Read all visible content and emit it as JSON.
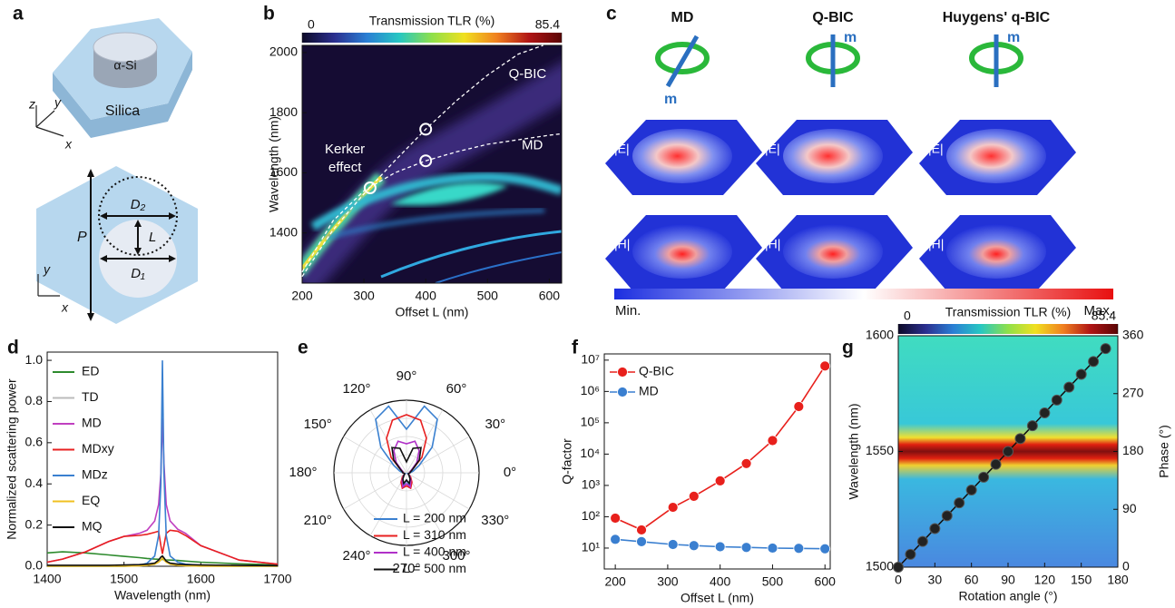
{
  "panel_labels": [
    "a",
    "b",
    "c",
    "d",
    "e",
    "f",
    "g"
  ],
  "panel_a": {
    "pillar": "α-Si",
    "substrate": "Silica",
    "axes_top": [
      "z",
      "y",
      "x"
    ],
    "d2": "D₂",
    "l": "L",
    "d1": "D₁",
    "p": "P",
    "axes_bottom": [
      "y",
      "x"
    ]
  },
  "panel_c": {
    "columns": [
      {
        "title": "MD",
        "moment": "m",
        "e_field": "|E|",
        "h_field": "|H|"
      },
      {
        "title": "Q-BIC",
        "moment": "m",
        "e_field": "|E|",
        "h_field": "|H|"
      },
      {
        "title": "Huygens' q-BIC",
        "moment": "m",
        "e_field": "|E|",
        "h_field": "|H|"
      }
    ],
    "colorbar": {
      "min_label": "Min.",
      "max_label": "Max."
    }
  },
  "chart_data": [
    {
      "type": "heatmap",
      "colorbar_title": "Transmission TLR (%)",
      "colorbar_ticks": [
        0,
        85.4
      ],
      "colormap": [
        "#0d0a28",
        "#2b2f8f",
        "#2a7fd4",
        "#27c7c2",
        "#8fe04a",
        "#f0e020",
        "#f08020",
        "#b01515",
        "#5a0505"
      ],
      "xlabel": "Offset L (nm)",
      "ylabel": "Wavelength (nm)",
      "xlim": [
        200,
        620
      ],
      "xticks": [
        200,
        300,
        400,
        500,
        600
      ],
      "ylim": [
        1233,
        2024
      ],
      "yticks": [
        1400,
        1600,
        1800,
        2000
      ],
      "series": [
        {
          "name": "Q-BIC",
          "color": "#ffffff",
          "x": [
            200,
            250,
            300,
            350,
            400,
            450,
            500,
            550,
            590
          ],
          "values": [
            1255,
            1410,
            1530,
            1640,
            1745,
            1840,
            1925,
            1995,
            2024
          ]
        },
        {
          "name": "MD",
          "color": "#ffffff",
          "x": [
            200,
            250,
            300,
            350,
            400,
            450,
            500,
            550,
            600,
            620
          ],
          "values": [
            1270,
            1440,
            1540,
            1600,
            1640,
            1670,
            1695,
            1710,
            1725,
            1730
          ]
        }
      ],
      "markers": {
        "x": [
          310,
          400,
          400
        ],
        "values": [
          1550,
          1640,
          1745
        ]
      },
      "annotation": [
        "Kerker",
        "effect"
      ]
    },
    {
      "type": "line",
      "xlabel": "Wavelength (nm)",
      "ylabel": "Normalized scattering power",
      "xlim": [
        1400,
        1700
      ],
      "xticks": [
        1400,
        1500,
        1600,
        1700
      ],
      "ylim": [
        0,
        1.04
      ],
      "yticks": [
        {
          "value": 0,
          "label": "0.0"
        },
        0.2,
        0.4,
        0.6,
        0.8,
        {
          "value": 1,
          "label": "1.0"
        }
      ],
      "legend": "upper left",
      "x": [
        1400,
        1420,
        1450,
        1480,
        1500,
        1520,
        1530,
        1540,
        1545,
        1548,
        1550,
        1552,
        1555,
        1560,
        1570,
        1580,
        1600,
        1650,
        1700
      ],
      "series": [
        {
          "name": "ED",
          "color": "#2e8b2e",
          "values": [
            0.065,
            0.07,
            0.065,
            0.055,
            0.048,
            0.042,
            0.038,
            0.035,
            0.034,
            0.033,
            0.033,
            0.032,
            0.031,
            0.03,
            0.028,
            0.025,
            0.02,
            0.012,
            0.007
          ]
        },
        {
          "name": "TD",
          "color": "#bbbbbb",
          "values": [
            0,
            0,
            0,
            0,
            0,
            0.002,
            0.005,
            0.012,
            0.025,
            0.04,
            0.05,
            0.04,
            0.025,
            0.012,
            0.006,
            0.003,
            0.001,
            0,
            0
          ]
        },
        {
          "name": "MD",
          "color": "#c040c0",
          "values": [
            0.02,
            0.035,
            0.07,
            0.12,
            0.145,
            0.16,
            0.175,
            0.22,
            0.3,
            0.45,
            0.72,
            0.5,
            0.3,
            0.22,
            0.18,
            0.16,
            0.1,
            0.03,
            0.01
          ]
        },
        {
          "name": "MDxy",
          "color": "#e82020",
          "values": [
            0.02,
            0.035,
            0.07,
            0.12,
            0.145,
            0.15,
            0.155,
            0.165,
            0.17,
            0.1,
            0.06,
            0.1,
            0.16,
            0.175,
            0.17,
            0.15,
            0.1,
            0.03,
            0.01
          ]
        },
        {
          "name": "MDz",
          "color": "#3a80d0",
          "values": [
            0,
            0,
            0,
            0,
            0,
            0.005,
            0.015,
            0.05,
            0.15,
            0.4,
            1.0,
            0.45,
            0.15,
            0.05,
            0.02,
            0.01,
            0.004,
            0.001,
            0
          ]
        },
        {
          "name": "EQ",
          "color": "#f0c020",
          "values": [
            0,
            0,
            0,
            0,
            0,
            0.002,
            0.005,
            0.01,
            0.02,
            0.03,
            0.04,
            0.03,
            0.02,
            0.01,
            0.005,
            0.002,
            0.001,
            0,
            0
          ]
        },
        {
          "name": "MQ",
          "color": "#111111",
          "values": [
            0.005,
            0.005,
            0.005,
            0.005,
            0.006,
            0.008,
            0.01,
            0.015,
            0.03,
            0.045,
            0.05,
            0.04,
            0.025,
            0.015,
            0.01,
            0.008,
            0.006,
            0.004,
            0.003
          ]
        }
      ]
    },
    {
      "type": "polar",
      "rlim": [
        0,
        1
      ],
      "rticks": [
        0.25,
        0.5,
        0.75,
        1
      ],
      "thetaticks": [
        {
          "value": 0,
          "label": "0°"
        },
        {
          "value": 30,
          "label": "30°"
        },
        {
          "value": 60,
          "label": "60°"
        },
        {
          "value": 90,
          "label": "90°"
        },
        {
          "value": 120,
          "label": "120°"
        },
        {
          "value": 150,
          "label": "150°"
        },
        {
          "value": 180,
          "label": "180°"
        },
        {
          "value": 210,
          "label": "210°"
        },
        {
          "value": 240,
          "label": "240°"
        },
        {
          "value": 270,
          "label": "270°"
        },
        {
          "value": 300,
          "label": "300°"
        },
        {
          "value": 330,
          "label": "330°"
        }
      ],
      "legend": "lower center",
      "theta": [
        0,
        15,
        30,
        45,
        60,
        75,
        90,
        105,
        120,
        135,
        150,
        165,
        180,
        195,
        210,
        225,
        240,
        255,
        270,
        285,
        300,
        315,
        330,
        345,
        360
      ],
      "series": [
        {
          "name": "L = 200 nm",
          "color": "#3a80d0",
          "values": [
            0.05,
            0.1,
            0.2,
            0.5,
            0.85,
            0.95,
            0.6,
            0.95,
            0.85,
            0.5,
            0.2,
            0.1,
            0.05,
            0.03,
            0.02,
            0.05,
            0.12,
            0.2,
            0.1,
            0.2,
            0.12,
            0.05,
            0.02,
            0.03,
            0.05
          ]
        },
        {
          "name": "L = 310 nm",
          "color": "#e82020",
          "values": [
            0.05,
            0.05,
            0.1,
            0.3,
            0.55,
            0.75,
            0.8,
            0.75,
            0.55,
            0.3,
            0.1,
            0.05,
            0.05,
            0.03,
            0.03,
            0.08,
            0.15,
            0.22,
            0.18,
            0.22,
            0.15,
            0.08,
            0.03,
            0.03,
            0.05
          ]
        },
        {
          "name": "L = 400 nm",
          "color": "#b030c8",
          "values": [
            0.05,
            0.05,
            0.08,
            0.2,
            0.35,
            0.45,
            0.4,
            0.45,
            0.35,
            0.2,
            0.08,
            0.05,
            0.05,
            0.03,
            0.03,
            0.06,
            0.12,
            0.2,
            0.15,
            0.2,
            0.12,
            0.06,
            0.03,
            0.03,
            0.05
          ]
        },
        {
          "name": "L = 500 nm",
          "color": "#111111",
          "values": [
            0.05,
            0.06,
            0.1,
            0.25,
            0.4,
            0.35,
            0.15,
            0.35,
            0.4,
            0.25,
            0.1,
            0.06,
            0.05,
            0.03,
            0.03,
            0.05,
            0.1,
            0.15,
            0.1,
            0.15,
            0.1,
            0.05,
            0.03,
            0.03,
            0.05
          ]
        }
      ]
    },
    {
      "type": "line",
      "ylog": true,
      "xlabel": "Offset L (nm)",
      "ylabel": "Q-factor",
      "xlim": [
        179,
        610
      ],
      "xticks": [
        200,
        300,
        400,
        500,
        600
      ],
      "ylim": [
        2.15,
        15800000
      ],
      "yticks": [
        {
          "value": 10,
          "label": "10¹"
        },
        {
          "value": 100,
          "label": "10²"
        },
        {
          "value": 1000,
          "label": "10³"
        },
        {
          "value": 10000,
          "label": "10⁴"
        },
        {
          "value": 100000,
          "label": "10⁵"
        },
        {
          "value": 1000000,
          "label": "10⁶"
        },
        {
          "value": 10000000,
          "label": "10⁷"
        }
      ],
      "legend": "upper left",
      "markers": true,
      "x": [
        200,
        250,
        310,
        350,
        400,
        450,
        500,
        550,
        600
      ],
      "series": [
        {
          "name": "Q-BIC",
          "color": "#e8201c",
          "values": [
            90,
            38,
            200,
            450,
            1400,
            5000,
            27000,
            330000,
            6500000
          ]
        },
        {
          "name": "MD",
          "color": "#3a7fd0",
          "values": [
            19,
            16,
            13,
            12,
            11,
            10.5,
            10,
            9.8,
            9.5
          ]
        }
      ]
    },
    {
      "type": "heatmap",
      "colorbar_title": "Transmission TLR (%)",
      "colorbar_ticks": [
        0,
        85.4
      ],
      "colormap": [
        "#0d0a28",
        "#2b2f8f",
        "#2a7fd4",
        "#27c7c2",
        "#8fe04a",
        "#f0e020",
        "#f08020",
        "#b01515",
        "#5a0505"
      ],
      "xlabel": "Rotation angle (°)",
      "ylabel": "Wavelength (nm)",
      "y2label": "Phase (°)",
      "xlim": [
        0,
        180
      ],
      "xticks": [
        0,
        30,
        60,
        90,
        120,
        150,
        180
      ],
      "ylim": [
        1500,
        1600
      ],
      "yticks": [
        1500,
        1550,
        1600
      ],
      "y2lim": [
        0,
        360
      ],
      "y2ticks": [
        0,
        90,
        180,
        270,
        360
      ],
      "series": [
        {
          "color": "#111111",
          "axis": "y2",
          "x": [
            0,
            10,
            20,
            30,
            40,
            50,
            60,
            70,
            80,
            90,
            100,
            110,
            120,
            130,
            140,
            150,
            160,
            170
          ],
          "values": [
            0,
            20,
            40,
            60,
            80,
            100,
            120,
            140,
            160,
            180,
            200,
            220,
            240,
            260,
            280,
            300,
            320,
            340
          ]
        }
      ]
    }
  ]
}
